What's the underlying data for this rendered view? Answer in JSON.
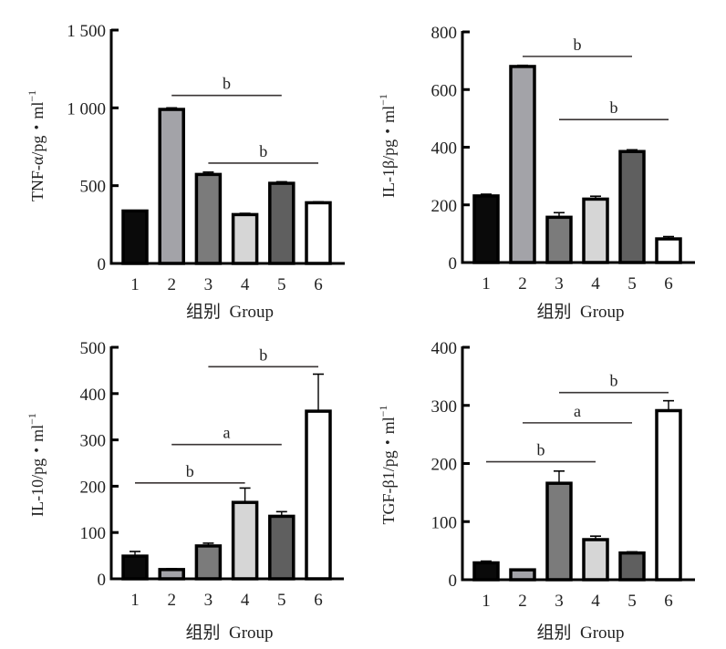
{
  "chart_data": [
    {
      "type": "bar",
      "id": "tnf",
      "ylabel": "TNF-α/pg・ml",
      "ylabel_sup": "−1",
      "xlabel": "组别  Group",
      "categories": [
        "1",
        "2",
        "3",
        "4",
        "5",
        "6"
      ],
      "values": [
        337,
        990,
        572,
        314,
        515,
        390
      ],
      "errors": [
        4,
        10,
        15,
        8,
        10,
        6
      ],
      "ylim": [
        0,
        1500
      ],
      "yticks": [
        0,
        500,
        1000,
        1500
      ],
      "ytick_labels": [
        "0",
        "500",
        "1 000",
        "1 500"
      ],
      "significance": [
        {
          "from": "2",
          "to": "5",
          "label": "b",
          "level": 1080
        },
        {
          "from": "3",
          "to": "6",
          "label": "b",
          "level": 645
        }
      ]
    },
    {
      "type": "bar",
      "id": "il1b",
      "ylabel": "IL-1β/pg・ml",
      "ylabel_sup": "−1",
      "xlabel": "组别  Group",
      "categories": [
        "1",
        "2",
        "3",
        "4",
        "5",
        "6"
      ],
      "values": [
        231,
        680,
        157,
        220,
        385,
        82
      ],
      "errors": [
        6,
        4,
        16,
        10,
        6,
        8
      ],
      "ylim": [
        0,
        800
      ],
      "yticks": [
        0,
        200,
        400,
        600,
        800
      ],
      "ytick_labels": [
        "0",
        "200",
        "400",
        "600",
        "800"
      ],
      "significance": [
        {
          "from": "2",
          "to": "5",
          "label": "b",
          "level": 715
        },
        {
          "from": "3",
          "to": "6",
          "label": "b",
          "level": 496
        }
      ]
    },
    {
      "type": "bar",
      "id": "il10",
      "ylabel": "IL-10/pg・ml",
      "ylabel_sup": "−1",
      "xlabel": "组别  Group",
      "categories": [
        "1",
        "2",
        "3",
        "4",
        "5",
        "6"
      ],
      "values": [
        49,
        20,
        71,
        165,
        135,
        362
      ],
      "errors": [
        10,
        2,
        6,
        31,
        10,
        80
      ],
      "ylim": [
        0,
        500
      ],
      "yticks": [
        0,
        100,
        200,
        300,
        400,
        500
      ],
      "ytick_labels": [
        "0",
        "100",
        "200",
        "300",
        "400",
        "500"
      ],
      "significance": [
        {
          "from": "3",
          "to": "6",
          "label": "b",
          "level": 458
        },
        {
          "from": "2",
          "to": "5",
          "label": "a",
          "level": 290
        },
        {
          "from": "1",
          "to": "4",
          "label": "b",
          "level": 207
        }
      ]
    },
    {
      "type": "bar",
      "id": "tgfb1",
      "ylabel": "TGF-β1/pg・ml",
      "ylabel_sup": "−1",
      "xlabel": "组别  Group",
      "categories": [
        "1",
        "2",
        "3",
        "4",
        "5",
        "6"
      ],
      "values": [
        29,
        17,
        166,
        69,
        46,
        291
      ],
      "errors": [
        3,
        1,
        21,
        6,
        2,
        17
      ],
      "ylim": [
        0,
        400
      ],
      "yticks": [
        0,
        100,
        200,
        300,
        400
      ],
      "ytick_labels": [
        "0",
        "100",
        "200",
        "300",
        "400"
      ],
      "significance": [
        {
          "from": "3",
          "to": "6",
          "label": "b",
          "level": 322
        },
        {
          "from": "2",
          "to": "5",
          "label": "a",
          "level": 270
        },
        {
          "from": "1",
          "to": "4",
          "label": "b",
          "level": 203
        }
      ]
    }
  ],
  "bar_colors": [
    "#0a0a0a",
    "#a3a3a8",
    "#7b7b7b",
    "#d6d6d6",
    "#5f5f5f",
    "#ffffff"
  ],
  "edge_color": "#000000",
  "sig_line_color": "#3a3535"
}
